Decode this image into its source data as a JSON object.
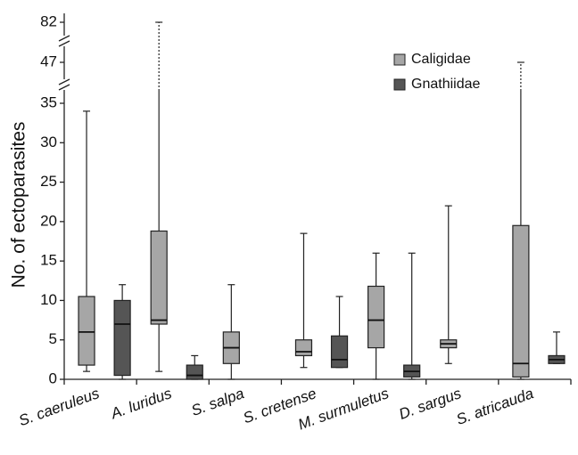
{
  "chart_data": {
    "type": "box",
    "y_label": "No. of ectoparasites",
    "categories": [
      "S. caeruleus",
      "A. luridus",
      "S. salpa",
      "S. cretense",
      "M. surmuletus",
      "D. sargus",
      "S. atricauda"
    ],
    "ylim": [
      0,
      35
    ],
    "yticks": [
      0,
      5,
      10,
      15,
      20,
      25,
      30,
      35
    ],
    "broken_yticks": [
      47,
      82
    ],
    "legend": "upper right",
    "series": [
      {
        "name": "Caligidae",
        "color": "#a6a6a6",
        "min": [
          1,
          1,
          0,
          1.5,
          0,
          2,
          0
        ],
        "q1": [
          1.8,
          7,
          2,
          3,
          4,
          4,
          0.3
        ],
        "median": [
          6,
          7.5,
          4,
          3.5,
          7.5,
          4.5,
          2
        ],
        "q3": [
          10.5,
          18.8,
          6,
          5,
          11.8,
          5,
          19.5
        ],
        "max": [
          34,
          82,
          12,
          18.5,
          16,
          22,
          47
        ]
      },
      {
        "name": "Gnathiidae",
        "color": "#555555",
        "min": [
          0,
          0,
          null,
          1.5,
          0,
          null,
          2
        ],
        "q1": [
          0.5,
          0,
          null,
          1.5,
          0.3,
          null,
          2
        ],
        "median": [
          7,
          0.5,
          null,
          2.5,
          1,
          null,
          2.5
        ],
        "q3": [
          10,
          1.8,
          null,
          5.5,
          1.8,
          null,
          3
        ],
        "max": [
          12,
          3,
          null,
          10.5,
          16,
          null,
          6
        ]
      }
    ]
  }
}
